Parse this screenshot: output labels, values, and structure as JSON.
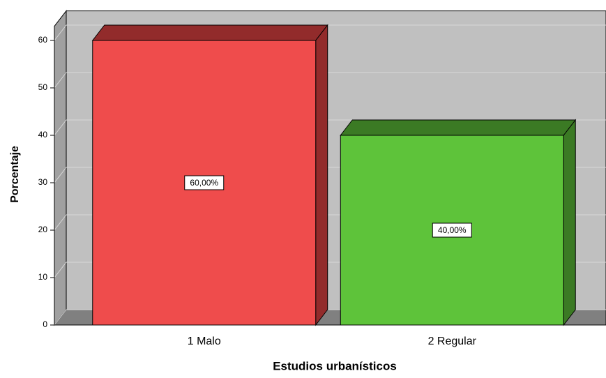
{
  "chart_data": {
    "type": "bar3d",
    "x_label": "Estudios urbanísticos",
    "y_label": "Porcentaje",
    "categories": [
      "1 Malo",
      "2 Regular"
    ],
    "values": [
      60,
      40
    ],
    "value_labels": [
      "60,00%",
      "40,00%"
    ],
    "colors": [
      "#ef4c4c",
      "#5ec33a"
    ],
    "side_colors": [
      "#922b2b",
      "#3b7a24"
    ],
    "ylim": [
      0,
      63
    ],
    "yticks": [
      0,
      10,
      20,
      30,
      40,
      50,
      60
    ],
    "grid": true
  }
}
